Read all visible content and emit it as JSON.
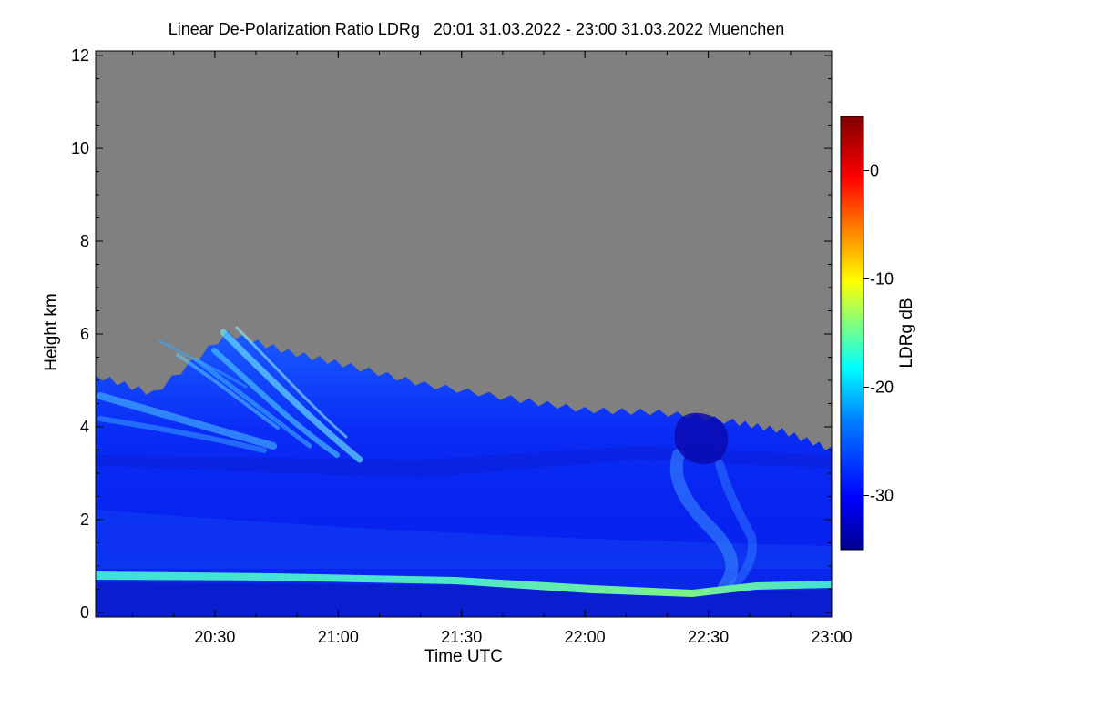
{
  "chart_data": {
    "type": "heatmap",
    "title": "Linear De-Polarization Ratio LDRg   20:01 31.03.2022 - 23:00 31.03.2022 Muenchen",
    "xlabel": "Time UTC",
    "ylabel": "Height km",
    "xlim": [
      20.0167,
      23.0
    ],
    "ylim": [
      -0.1,
      12.1
    ],
    "xticks": [
      {
        "value": 20.5,
        "label": "20:30"
      },
      {
        "value": 21.0,
        "label": "21:00"
      },
      {
        "value": 21.5,
        "label": "21:30"
      },
      {
        "value": 22.0,
        "label": "22:00"
      },
      {
        "value": 22.5,
        "label": "22:30"
      },
      {
        "value": 23.0,
        "label": "23:00"
      }
    ],
    "yticks": [
      {
        "value": 0,
        "label": "0"
      },
      {
        "value": 2,
        "label": "2"
      },
      {
        "value": 4,
        "label": "4"
      },
      {
        "value": 6,
        "label": "6"
      },
      {
        "value": 8,
        "label": "8"
      },
      {
        "value": 10,
        "label": "10"
      },
      {
        "value": 12,
        "label": "12"
      }
    ],
    "colorbar": {
      "label": "LDRg dB",
      "range": [
        -35,
        5
      ],
      "ticks": [
        {
          "value": 0,
          "label": "0"
        },
        {
          "value": -10,
          "label": "-10"
        },
        {
          "value": -20,
          "label": "-20"
        },
        {
          "value": -30,
          "label": "-30"
        }
      ],
      "colormap": [
        "#00008f",
        "#0000ff",
        "#0080ff",
        "#00ffff",
        "#80ff80",
        "#ffff00",
        "#ff8000",
        "#ff0000",
        "#800000"
      ]
    },
    "no_data_color": "#808080",
    "cloud_top_km": [
      {
        "time": 20.0167,
        "height": 5.1
      },
      {
        "time": 20.25,
        "height": 4.7
      },
      {
        "time": 20.55,
        "height": 6.0
      },
      {
        "time": 20.8,
        "height": 5.6
      },
      {
        "time": 21.05,
        "height": 5.3
      },
      {
        "time": 21.35,
        "height": 4.9
      },
      {
        "time": 21.7,
        "height": 4.6
      },
      {
        "time": 22.0,
        "height": 4.35
      },
      {
        "time": 22.3,
        "height": 4.3
      },
      {
        "time": 22.6,
        "height": 4.1
      },
      {
        "time": 22.8,
        "height": 3.9
      },
      {
        "time": 23.0,
        "height": 3.5
      }
    ],
    "features": [
      {
        "name": "boundary layer top band",
        "time_start": 20.0167,
        "time_end": 23.0,
        "height_start": 0.8,
        "height_end": 0.55,
        "ldr_db": -22
      },
      {
        "name": "surface layer",
        "time_start": 20.0167,
        "time_end": 23.0,
        "height_low": 0.0,
        "height_high": 0.6,
        "ldr_db": -33
      },
      {
        "name": "ice fall streaks",
        "time_start": 20.3,
        "time_end": 21.1,
        "height_low": 3.8,
        "height_high": 6.2,
        "ldr_db": -20
      },
      {
        "name": "virga fallstreak",
        "time_start": 22.3,
        "time_end": 22.7,
        "height_low": 0.6,
        "height_high": 4.2,
        "ldr_db": -26
      },
      {
        "name": "convective cell top",
        "time": 22.5,
        "height": 3.9,
        "ldr_db": -34
      }
    ]
  }
}
